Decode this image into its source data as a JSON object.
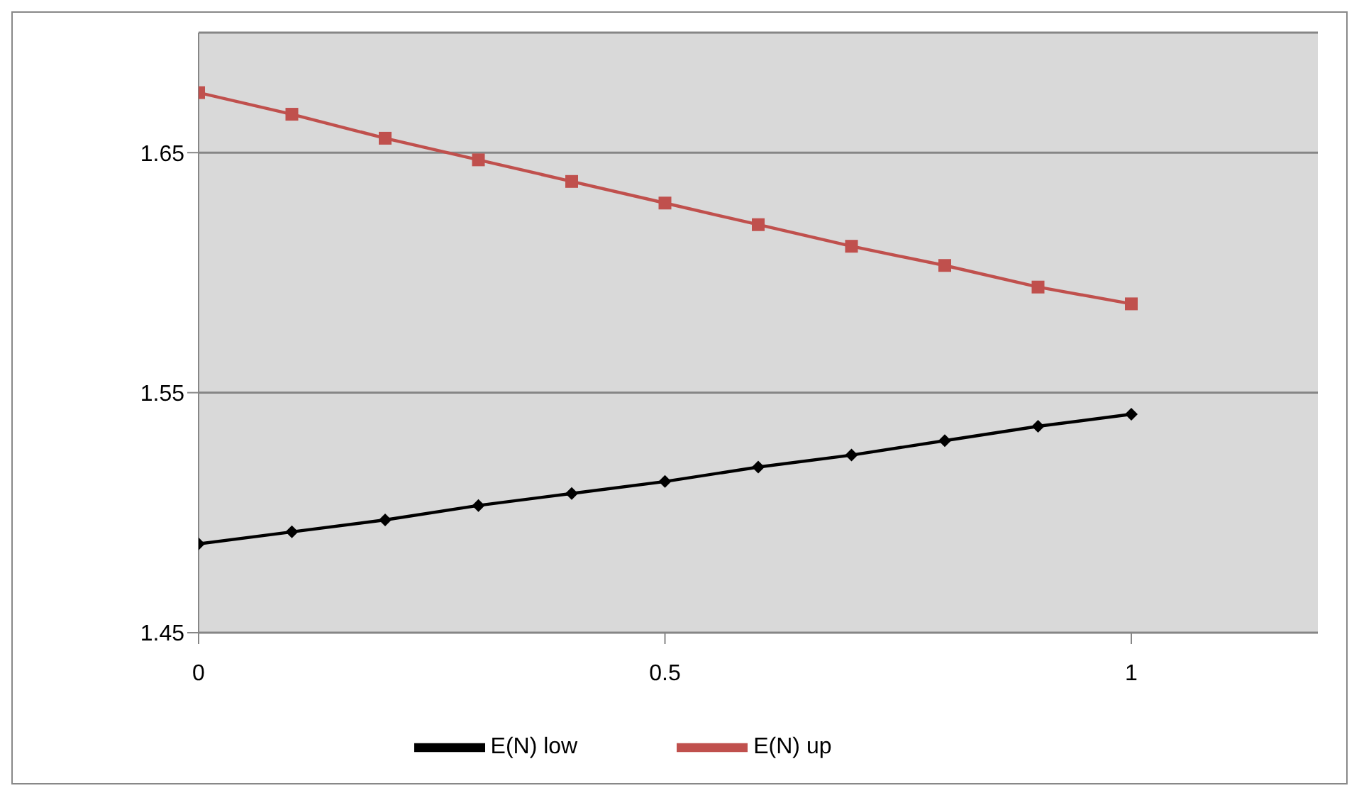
{
  "chart_data": {
    "type": "line",
    "x": [
      0,
      0.1,
      0.2,
      0.3,
      0.4,
      0.5,
      0.6,
      0.7,
      0.8,
      0.9,
      1
    ],
    "series": [
      {
        "name": "E(N) low",
        "color": "#000000",
        "marker": "diamond",
        "values": [
          1.487,
          1.492,
          1.497,
          1.503,
          1.508,
          1.513,
          1.519,
          1.524,
          1.53,
          1.536,
          1.541
        ]
      },
      {
        "name": "E(N) up",
        "color": "#c0504d",
        "marker": "square",
        "values": [
          1.675,
          1.666,
          1.656,
          1.647,
          1.638,
          1.629,
          1.62,
          1.611,
          1.603,
          1.594,
          1.587
        ]
      }
    ],
    "xlim": [
      0,
      1.2
    ],
    "xticks": [
      0,
      0.5,
      1
    ],
    "ylim": [
      1.45,
      1.7
    ],
    "yticks": [
      1.45,
      1.55,
      1.65
    ],
    "grid": "y",
    "legend": "bottom"
  }
}
